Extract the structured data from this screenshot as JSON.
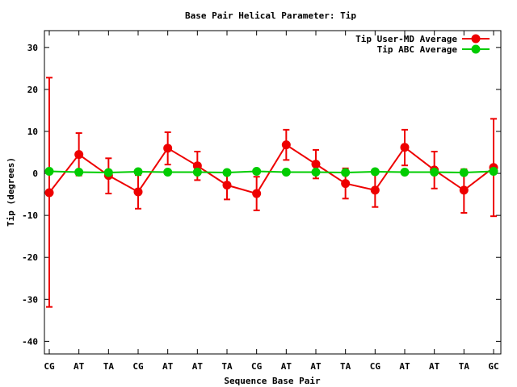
{
  "chart_data": {
    "type": "line",
    "title": "Base Pair Helical Parameter: Tip",
    "xlabel": "Sequence Base Pair",
    "ylabel": "Tip (degrees)",
    "ylim": [
      -43,
      34
    ],
    "yticks": [
      30,
      20,
      10,
      0,
      -10,
      -20,
      -30,
      -40
    ],
    "categories": [
      "CG",
      "AT",
      "TA",
      "CG",
      "AT",
      "AT",
      "TA",
      "CG",
      "AT",
      "AT",
      "TA",
      "CG",
      "AT",
      "AT",
      "TA",
      "GC"
    ],
    "legend_position": "top-right",
    "grid": false,
    "series": [
      {
        "name": "Tip User-MD Average",
        "color": "#ee0000",
        "values": [
          -4.6,
          4.5,
          -0.5,
          -4.4,
          6.0,
          1.8,
          -2.8,
          -4.8,
          6.8,
          2.2,
          -2.4,
          -4.0,
          6.2,
          0.8,
          -4.0,
          1.4
        ],
        "err_low": [
          -31.8,
          -0.5,
          -4.8,
          -8.4,
          2.1,
          -1.6,
          -6.2,
          -8.8,
          3.2,
          -1.2,
          -6.0,
          -8.0,
          1.9,
          -3.6,
          -9.4,
          -10.2
        ],
        "err_high": [
          22.8,
          9.6,
          3.6,
          -0.4,
          9.8,
          5.2,
          0.6,
          -0.8,
          10.4,
          5.6,
          1.2,
          0.0,
          10.4,
          5.2,
          1.0,
          13.0
        ]
      },
      {
        "name": "Tip ABC Average",
        "color": "#00cc00",
        "values": [
          0.5,
          0.3,
          0.2,
          0.4,
          0.3,
          0.3,
          0.2,
          0.5,
          0.3,
          0.3,
          0.2,
          0.4,
          0.3,
          0.3,
          0.2,
          0.5
        ]
      }
    ]
  }
}
